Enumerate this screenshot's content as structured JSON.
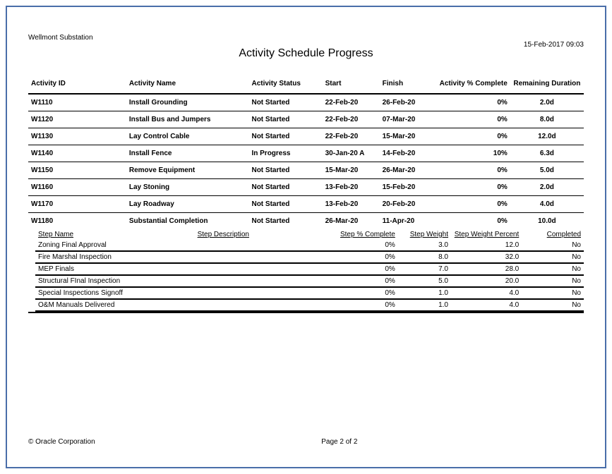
{
  "header": {
    "project_name": "Wellmont Substation",
    "timestamp": "15-Feb-2017 09:03",
    "report_title": "Activity Schedule Progress"
  },
  "columns": {
    "id": "Activity ID",
    "name": "Activity Name",
    "status": "Activity Status",
    "start": "Start",
    "finish": "Finish",
    "pct": "Activity % Complete",
    "dur": "Remaining Duration"
  },
  "activities": [
    {
      "id": "W1110",
      "name": "Install Grounding",
      "status": "Not Started",
      "start": "22-Feb-20",
      "finish": "26-Feb-20",
      "pct": "0%",
      "dur": "2.0d"
    },
    {
      "id": "W1120",
      "name": "Install Bus and Jumpers",
      "status": "Not Started",
      "start": "22-Feb-20",
      "finish": "07-Mar-20",
      "pct": "0%",
      "dur": "8.0d"
    },
    {
      "id": "W1130",
      "name": "Lay Control Cable",
      "status": "Not Started",
      "start": "22-Feb-20",
      "finish": "15-Mar-20",
      "pct": "0%",
      "dur": "12.0d"
    },
    {
      "id": "W1140",
      "name": "Install Fence",
      "status": "In Progress",
      "start": "30-Jan-20 A",
      "finish": "14-Feb-20",
      "pct": "10%",
      "dur": "6.3d"
    },
    {
      "id": "W1150",
      "name": "Remove Equipment",
      "status": "Not Started",
      "start": "15-Mar-20",
      "finish": "26-Mar-20",
      "pct": "0%",
      "dur": "5.0d"
    },
    {
      "id": "W1160",
      "name": "Lay Stoning",
      "status": "Not Started",
      "start": "13-Feb-20",
      "finish": "15-Feb-20",
      "pct": "0%",
      "dur": "2.0d"
    },
    {
      "id": "W1170",
      "name": "Lay Roadway",
      "status": "Not Started",
      "start": "13-Feb-20",
      "finish": "20-Feb-20",
      "pct": "0%",
      "dur": "4.0d"
    }
  ],
  "activity_with_steps": {
    "id": "W1180",
    "name": "Substantial Completion",
    "status": "Not Started",
    "start": "26-Mar-20",
    "finish": "11-Apr-20",
    "pct": "0%",
    "dur": "10.0d"
  },
  "step_columns": {
    "name": "Step Name",
    "desc": "Step Description",
    "pct": "Step % Complete",
    "wt": "Step Weight",
    "wpct": "Step Weight Percent",
    "comp": "Completed"
  },
  "steps": [
    {
      "name": "Zoning Final Approval",
      "desc": "",
      "pct": "0%",
      "wt": "3.0",
      "wpct": "12.0",
      "comp": "No"
    },
    {
      "name": "Fire Marshal Inspection",
      "desc": "",
      "pct": "0%",
      "wt": "8.0",
      "wpct": "32.0",
      "comp": "No"
    },
    {
      "name": "MEP Finals",
      "desc": "",
      "pct": "0%",
      "wt": "7.0",
      "wpct": "28.0",
      "comp": "No"
    },
    {
      "name": "Structural FInal Inspection",
      "desc": "",
      "pct": "0%",
      "wt": "5.0",
      "wpct": "20.0",
      "comp": "No"
    },
    {
      "name": "Special Inspections Signoff",
      "desc": "",
      "pct": "0%",
      "wt": "1.0",
      "wpct": "4.0",
      "comp": "No"
    },
    {
      "name": "O&M Manuals Delivered",
      "desc": "",
      "pct": "0%",
      "wt": "1.0",
      "wpct": "4.0",
      "comp": "No"
    }
  ],
  "footer": {
    "copyright": "© Oracle Corporation",
    "page": "Page 2 of 2"
  }
}
